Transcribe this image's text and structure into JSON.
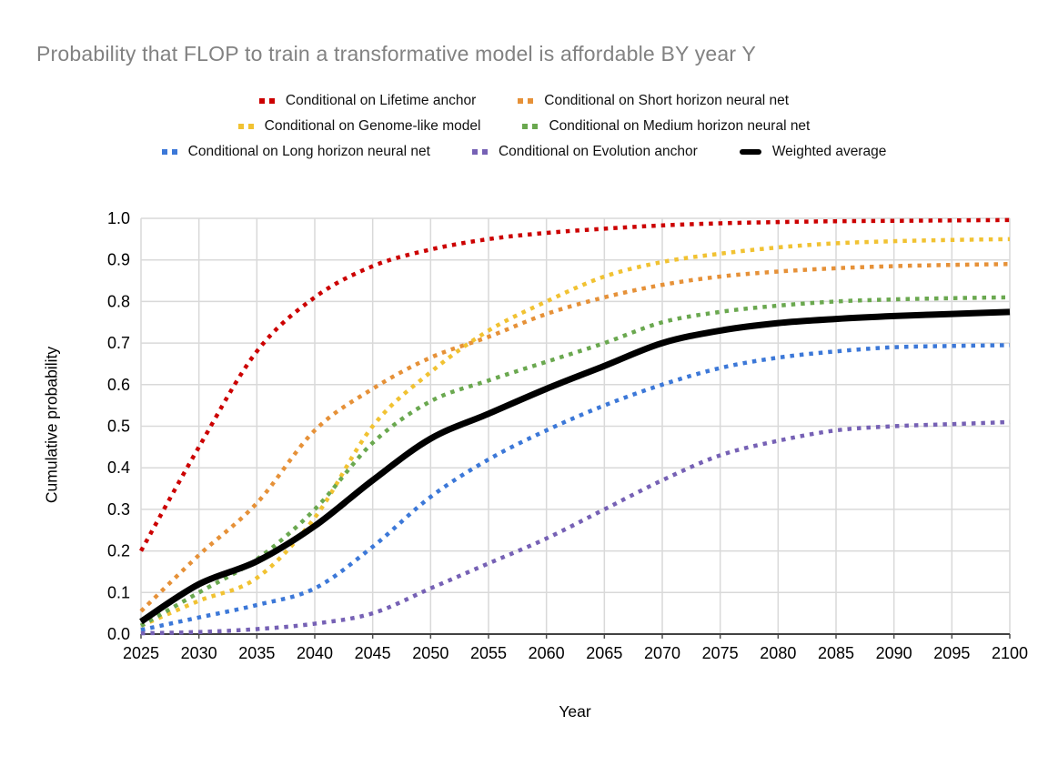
{
  "title": "Probability that FLOP to train a transformative model is affordable BY year Y",
  "legend": {
    "rows": [
      [
        {
          "label": "Conditional on Lifetime anchor",
          "color": "#cc0000",
          "style": "dotted"
        },
        {
          "label": "Conditional on Short horizon neural net",
          "color": "#e69138",
          "style": "dotted"
        }
      ],
      [
        {
          "label": "Conditional on Genome-like model",
          "color": "#f1c232",
          "style": "dotted"
        },
        {
          "label": "Conditional on Medium horizon neural net",
          "color": "#6aa84f",
          "style": "dotted"
        }
      ],
      [
        {
          "label": "Conditional on Long horizon neural net",
          "color": "#3c78d8",
          "style": "dotted"
        },
        {
          "label": "Conditional on Evolution anchor",
          "color": "#7661b5",
          "style": "dotted"
        },
        {
          "label": "Weighted average",
          "color": "#000000",
          "style": "solid"
        }
      ]
    ]
  },
  "chart_data": {
    "type": "line",
    "title": "Probability that FLOP to train a transformative model is affordable BY year Y",
    "xlabel": "Year",
    "ylabel": "Cumulative probability",
    "xlim": [
      2025,
      2100
    ],
    "ylim": [
      0,
      1
    ],
    "grid": true,
    "legend_position": "top",
    "x_ticks": [
      2025,
      2030,
      2035,
      2040,
      2045,
      2050,
      2055,
      2060,
      2065,
      2070,
      2075,
      2080,
      2085,
      2090,
      2095,
      2100
    ],
    "y_ticks": [
      "0.0",
      "0.1",
      "0.2",
      "0.3",
      "0.4",
      "0.5",
      "0.6",
      "0.7",
      "0.8",
      "0.9",
      "1.0"
    ],
    "x": [
      2025,
      2030,
      2035,
      2040,
      2045,
      2050,
      2055,
      2060,
      2065,
      2070,
      2075,
      2080,
      2085,
      2090,
      2095,
      2100
    ],
    "series": [
      {
        "name": "Conditional on Lifetime anchor",
        "color": "#cc0000",
        "line_style": "dotted",
        "values": [
          0.2,
          0.45,
          0.68,
          0.81,
          0.885,
          0.925,
          0.95,
          0.965,
          0.975,
          0.983,
          0.988,
          0.991,
          0.993,
          0.994,
          0.995,
          0.996
        ]
      },
      {
        "name": "Conditional on Short horizon neural net",
        "color": "#e69138",
        "line_style": "dotted",
        "values": [
          0.055,
          0.19,
          0.315,
          0.49,
          0.59,
          0.665,
          0.715,
          0.77,
          0.81,
          0.84,
          0.86,
          0.872,
          0.88,
          0.885,
          0.888,
          0.89
        ]
      },
      {
        "name": "Conditional on Genome-like model",
        "color": "#f1c232",
        "line_style": "dotted",
        "values": [
          0.02,
          0.08,
          0.135,
          0.28,
          0.5,
          0.63,
          0.73,
          0.8,
          0.86,
          0.895,
          0.915,
          0.93,
          0.94,
          0.945,
          0.948,
          0.95
        ]
      },
      {
        "name": "Conditional on Medium horizon neural net",
        "color": "#6aa84f",
        "line_style": "dotted",
        "values": [
          0.02,
          0.1,
          0.18,
          0.3,
          0.46,
          0.56,
          0.61,
          0.655,
          0.7,
          0.75,
          0.775,
          0.79,
          0.8,
          0.805,
          0.808,
          0.81
        ]
      },
      {
        "name": "Conditional on Long horizon neural net",
        "color": "#3c78d8",
        "line_style": "dotted",
        "values": [
          0.01,
          0.04,
          0.07,
          0.11,
          0.21,
          0.33,
          0.42,
          0.49,
          0.55,
          0.6,
          0.64,
          0.665,
          0.68,
          0.69,
          0.693,
          0.695
        ]
      },
      {
        "name": "Conditional on Evolution anchor",
        "color": "#7661b5",
        "line_style": "dotted",
        "values": [
          0.002,
          0.005,
          0.012,
          0.025,
          0.05,
          0.11,
          0.17,
          0.23,
          0.3,
          0.37,
          0.43,
          0.465,
          0.49,
          0.5,
          0.505,
          0.51
        ]
      },
      {
        "name": "Weighted average",
        "color": "#000000",
        "line_style": "solid",
        "values": [
          0.03,
          0.12,
          0.175,
          0.26,
          0.37,
          0.47,
          0.53,
          0.59,
          0.645,
          0.7,
          0.73,
          0.748,
          0.758,
          0.765,
          0.77,
          0.775
        ]
      }
    ]
  }
}
